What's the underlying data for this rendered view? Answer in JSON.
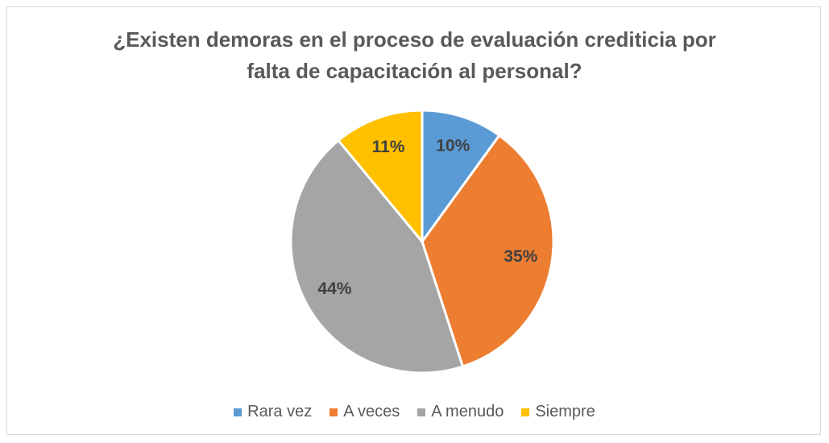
{
  "chart_data": {
    "type": "pie",
    "title": "¿Existen demoras en el proceso de evaluación crediticia por falta de capacitación al personal?",
    "categories": [
      "Rara vez",
      "A veces",
      "A menudo",
      "Siempre"
    ],
    "values": [
      10,
      35,
      44,
      11
    ],
    "value_labels": [
      "10%",
      "35%",
      "44%",
      "11%"
    ],
    "colors": [
      "#5b9bd5",
      "#ed7d31",
      "#a5a5a5",
      "#ffc000"
    ],
    "legend": "bottom"
  }
}
